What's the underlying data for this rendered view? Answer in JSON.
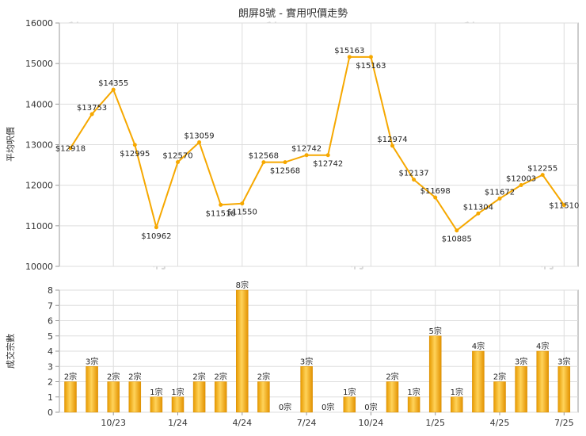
{
  "title": "朗屏8號 - 實用呎價走勢",
  "watermark": "利一",
  "chart_data": [
    {
      "type": "line",
      "ylabel": "平均呎價",
      "ylim": [
        10000,
        16000
      ],
      "yticks": [
        10000,
        11000,
        12000,
        13000,
        14000,
        15000,
        16000
      ],
      "color": "#f6a800",
      "values": [
        12918,
        13753,
        14355,
        12995,
        10962,
        12570,
        13059,
        11518,
        11550,
        12568,
        12568,
        12742,
        12742,
        15163,
        15163,
        12974,
        12137,
        11698,
        10885,
        11304,
        11672,
        12003,
        12255,
        11510
      ],
      "labels": [
        "$12918",
        "$13753",
        "$14355",
        "$12995",
        "$10962",
        "$12570",
        "$13059",
        "$11518",
        "$11550",
        "$12568",
        "$12568",
        "$12742",
        "$12742",
        "$15163",
        "$15163",
        "$12974",
        "$12137",
        "$11698",
        "$10885",
        "$11304",
        "$11672",
        "$12003",
        "$12255",
        "$11510"
      ]
    },
    {
      "type": "bar",
      "ylabel": "成交宗數",
      "ylim": [
        0,
        8
      ],
      "yticks": [
        0,
        1,
        2,
        3,
        4,
        5,
        6,
        7,
        8
      ],
      "color": "#f2b021",
      "values": [
        2,
        3,
        2,
        2,
        1,
        1,
        2,
        2,
        8,
        2,
        0,
        3,
        0,
        1,
        0,
        2,
        1,
        5,
        1,
        4,
        2,
        3,
        4,
        3
      ],
      "labels": [
        "2宗",
        "3宗",
        "2宗",
        "2宗",
        "1宗",
        "1宗",
        "2宗",
        "2宗",
        "8宗",
        "2宗",
        "0宗",
        "3宗",
        "0宗",
        "1宗",
        "0宗",
        "2宗",
        "1宗",
        "5宗",
        "1宗",
        "4宗",
        "2宗",
        "3宗",
        "4宗",
        "3宗"
      ]
    }
  ],
  "x_axis": {
    "tick_labels": [
      "10/23",
      "1/24",
      "4/24",
      "7/24",
      "10/24",
      "1/25",
      "4/25",
      "7/25"
    ],
    "tick_positions": [
      2,
      5,
      8,
      11,
      14,
      17,
      20,
      23
    ]
  }
}
